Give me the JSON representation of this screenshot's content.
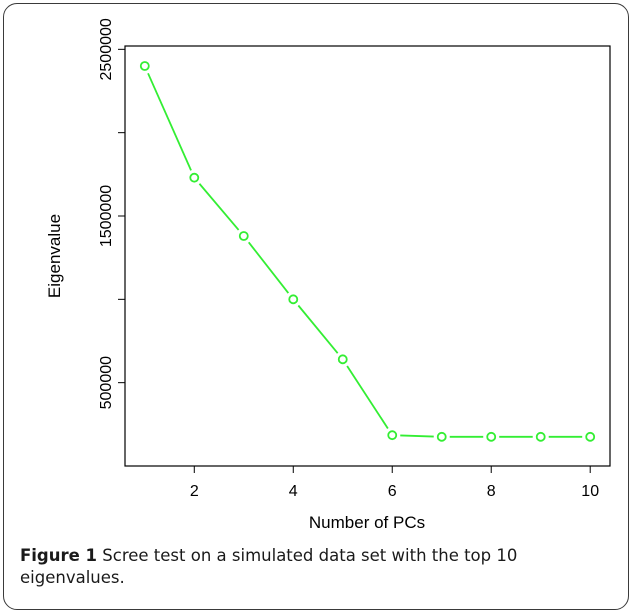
{
  "caption": {
    "label": "Figure 1",
    "text": "Scree test on a simulated data set with the top 10 eigenvalues."
  },
  "chart_data": {
    "type": "line",
    "xlabel": "Number of PCs",
    "ylabel": "Eigenvalue",
    "x": [
      1,
      2,
      3,
      4,
      5,
      6,
      7,
      8,
      9,
      10
    ],
    "series": [
      {
        "values": [
          2400000,
          1730000,
          1380000,
          1000000,
          640000,
          185000,
          175000,
          175000,
          175000,
          175000
        ]
      }
    ],
    "xlim": [
      0.6,
      10.4
    ],
    "ylim": [
      0,
      2520000
    ],
    "x_ticks": [
      2,
      4,
      6,
      8,
      10
    ],
    "y_ticks": [
      500000,
      1000000,
      1500000,
      2000000,
      2500000
    ],
    "y_tick_labels": [
      "500000",
      "",
      "1500000",
      "",
      "2500000"
    ],
    "marker": "open-circle",
    "line_color": "#33ee33",
    "grid": false,
    "legend": "none"
  }
}
